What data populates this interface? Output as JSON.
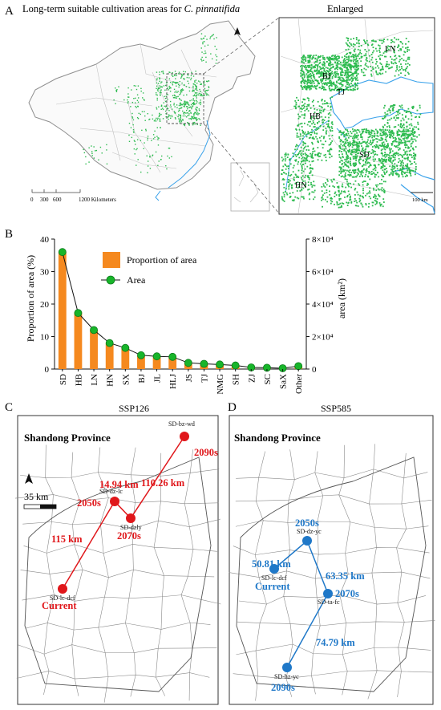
{
  "panel_a": {
    "letter": "A",
    "title_prefix": "Long-term suitable cultivation areas for ",
    "title_species": "C. pinnatifida",
    "enlarged_label": "Enlarged",
    "scale_ticks": [
      "0",
      "300",
      "600",
      "1200 Kilometers"
    ],
    "enlarged_scale": "100 km",
    "province_labels": [
      "LN",
      "BJ",
      "TJ",
      "HB",
      "SD",
      "HN"
    ],
    "colors": {
      "suitable": "#2dbb4f",
      "water": "#3aa2ea",
      "border": "#9a9a9a"
    }
  },
  "chart_data": {
    "type": "bar",
    "letter": "B",
    "categories": [
      "SD",
      "HB",
      "LN",
      "HN",
      "SX",
      "BJ",
      "JL",
      "HLJ",
      "JS",
      "TJ",
      "NMG",
      "SH",
      "ZJ",
      "SC",
      "SaX",
      "Other"
    ],
    "series": [
      {
        "name": "Proportion of area",
        "axis": "left",
        "type": "bar",
        "color": "#f5891f",
        "values": [
          36,
          17.5,
          12,
          8,
          6.5,
          4,
          3.8,
          3.7,
          1.8,
          1.6,
          1.4,
          1.1,
          0.5,
          0.4,
          0.3,
          0.9
        ]
      },
      {
        "name": "Area",
        "axis": "right",
        "type": "line",
        "color": "#18b52a",
        "values": [
          72000,
          34500,
          24000,
          16000,
          13000,
          8500,
          7800,
          7500,
          3800,
          3200,
          2800,
          2200,
          1000,
          800,
          500,
          1800
        ]
      }
    ],
    "ylabel_left": "Proportion of area (%)",
    "ylabel_right": "area (km²)",
    "ylim_left": [
      0,
      40
    ],
    "yticks_left": [
      "0",
      "10",
      "20",
      "30",
      "40"
    ],
    "ylim_right": [
      0,
      80000
    ],
    "yticks_right": [
      "0",
      "2×10⁴",
      "4×10⁴",
      "6×10⁴",
      "8×10⁴"
    ],
    "legend": [
      "Proportion of area",
      "Area"
    ],
    "legend_position": "top-center"
  },
  "panel_c": {
    "letter": "C",
    "scenario": "SSP126",
    "province": "Shandong Province",
    "scale_label": "35 km",
    "color": "#e0161a",
    "points": [
      {
        "label": "Current",
        "site": "SD-lc-dcf"
      },
      {
        "label": "2050s",
        "site": "SD-dz-lc"
      },
      {
        "label": "2070s",
        "site": "SD-dzly"
      },
      {
        "label": "2090s",
        "site": "SD-bz-wd"
      }
    ],
    "distances": [
      "115 km",
      "14.94 km",
      "110.26 km"
    ]
  },
  "panel_d": {
    "letter": "D",
    "scenario": "SSP585",
    "province": "Shandong Province",
    "color": "#1f78c8",
    "points": [
      {
        "label": "Current",
        "site": "SD-lc-dcf"
      },
      {
        "label": "2050s",
        "site": "SD-dz-yc"
      },
      {
        "label": "2070s",
        "site": "SD-ta-fc"
      },
      {
        "label": "2090s",
        "site": "SD-hz-yc"
      }
    ],
    "distances": [
      "50.81 km",
      "63.35 km",
      "74.79 km"
    ]
  }
}
